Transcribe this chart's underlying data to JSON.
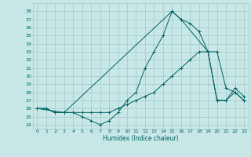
{
  "xlabel": "Humidex (Indice chaleur)",
  "background_color": "#c8e8e8",
  "grid_color": "#a0c8c8",
  "line_color": "#006060",
  "xlim": [
    -0.5,
    23.5
  ],
  "ylim": [
    23.5,
    39
  ],
  "yticks": [
    24,
    25,
    26,
    27,
    28,
    29,
    30,
    31,
    32,
    33,
    34,
    35,
    36,
    37,
    38
  ],
  "xticks": [
    0,
    1,
    2,
    3,
    4,
    5,
    6,
    7,
    8,
    9,
    10,
    11,
    12,
    13,
    14,
    15,
    16,
    17,
    18,
    19,
    20,
    21,
    22,
    23
  ],
  "series1_x": [
    0,
    1,
    2,
    3,
    4,
    5,
    6,
    7,
    8,
    9,
    10,
    11,
    12,
    13,
    14,
    15,
    16,
    17,
    18,
    19,
    20,
    21,
    22,
    23
  ],
  "series1_y": [
    26,
    26,
    25.5,
    25.5,
    25.5,
    25,
    24.5,
    24,
    24.5,
    25.5,
    27,
    28,
    31,
    33,
    35,
    38,
    37,
    36.5,
    35.5,
    33,
    27,
    27,
    28,
    27
  ],
  "series2_x": [
    0,
    1,
    2,
    3,
    4,
    5,
    6,
    7,
    8,
    9,
    10,
    11,
    12,
    13,
    14,
    15,
    16,
    17,
    18,
    19,
    20,
    21,
    22,
    23
  ],
  "series2_y": [
    26,
    26,
    25.5,
    25.5,
    25.5,
    25.5,
    25.5,
    25.5,
    25.5,
    26,
    26.5,
    27,
    27.5,
    28,
    29,
    30,
    31,
    32,
    33,
    33,
    33,
    28.5,
    28,
    27
  ],
  "series3_x": [
    0,
    3,
    15,
    16,
    19,
    20,
    21,
    22,
    23
  ],
  "series3_y": [
    26,
    25.5,
    38,
    37,
    33,
    27,
    27,
    28.5,
    27.5
  ]
}
